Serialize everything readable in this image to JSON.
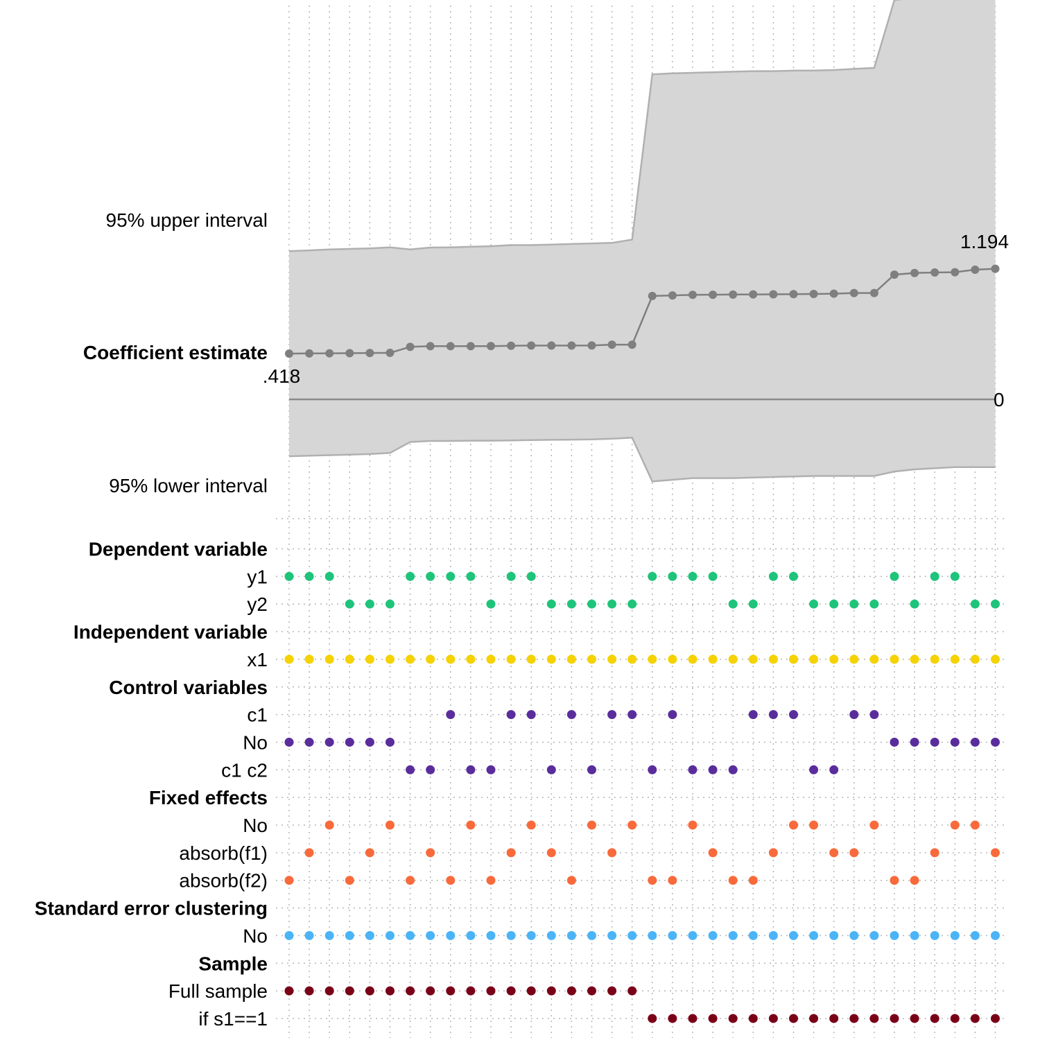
{
  "chart_data": {
    "type": "line",
    "n_specs": 36,
    "panel_labels": {
      "upper": "95% upper interval",
      "estimate": "Coefficient estimate",
      "lower": "95% lower interval"
    },
    "value_labels": {
      "first": ".418",
      "last": "1.194",
      "zero": "0"
    },
    "coefficient_estimate": [
      0.418,
      0.42,
      0.421,
      0.422,
      0.424,
      0.425,
      0.48,
      0.486,
      0.486,
      0.486,
      0.487,
      0.49,
      0.492,
      0.492,
      0.492,
      0.493,
      0.5,
      0.5,
      0.945,
      0.95,
      0.955,
      0.956,
      0.958,
      0.959,
      0.96,
      0.962,
      0.963,
      0.966,
      0.972,
      0.972,
      1.14,
      1.155,
      1.16,
      1.162,
      1.185,
      1.194
    ],
    "ci_upper": [
      1.355,
      1.362,
      1.37,
      1.375,
      1.38,
      1.39,
      1.37,
      1.388,
      1.39,
      1.395,
      1.4,
      1.41,
      1.41,
      1.415,
      1.42,
      1.425,
      1.43,
      1.46,
      2.97,
      2.98,
      2.985,
      2.99,
      2.995,
      3.0,
      3.0,
      3.005,
      3.005,
      3.01,
      3.02,
      3.03,
      3.65,
      3.67,
      3.675,
      3.69,
      3.71,
      3.71
    ],
    "ci_lower": [
      -0.52,
      -0.515,
      -0.51,
      -0.505,
      -0.5,
      -0.49,
      -0.39,
      -0.38,
      -0.38,
      -0.378,
      -0.378,
      -0.375,
      -0.372,
      -0.37,
      -0.368,
      -0.366,
      -0.36,
      -0.35,
      -0.75,
      -0.735,
      -0.72,
      -0.72,
      -0.72,
      -0.715,
      -0.71,
      -0.705,
      -0.7,
      -0.7,
      -0.7,
      -0.7,
      -0.66,
      -0.64,
      -0.63,
      -0.62,
      -0.62,
      -0.62
    ],
    "estimate_line_color": "#7f7f7f",
    "band_color": "#d6d6d6",
    "band_edge_color": "#b0b0b0",
    "indicator_groups": [
      {
        "title": "Dependent variable",
        "color": "#1ec47a",
        "rows": [
          {
            "label": "y1",
            "specs": [
              1,
              2,
              3,
              7,
              8,
              9,
              10,
              12,
              13,
              19,
              20,
              21,
              22,
              25,
              26,
              31,
              33,
              34
            ]
          },
          {
            "label": "y2",
            "specs": [
              4,
              5,
              6,
              11,
              14,
              15,
              16,
              17,
              18,
              23,
              24,
              27,
              28,
              29,
              30,
              32,
              35,
              36
            ]
          }
        ]
      },
      {
        "title": "Independent variable",
        "color": "#f5d200",
        "rows": [
          {
            "label": "x1",
            "specs": [
              1,
              2,
              3,
              4,
              5,
              6,
              7,
              8,
              9,
              10,
              11,
              12,
              13,
              14,
              15,
              16,
              17,
              18,
              19,
              20,
              21,
              22,
              23,
              24,
              25,
              26,
              27,
              28,
              29,
              30,
              31,
              32,
              33,
              34,
              35,
              36
            ]
          }
        ]
      },
      {
        "title": "Control variables",
        "color": "#5a2d9c",
        "rows": [
          {
            "label": "c1",
            "specs": [
              9,
              12,
              13,
              15,
              17,
              18,
              20,
              24,
              25,
              26,
              29,
              30
            ]
          },
          {
            "label": "No",
            "specs": [
              1,
              2,
              3,
              4,
              5,
              6,
              31,
              32,
              33,
              34,
              35,
              36
            ]
          },
          {
            "label": "c1 c2",
            "specs": [
              7,
              8,
              10,
              11,
              14,
              16,
              19,
              21,
              22,
              23,
              27,
              28
            ]
          }
        ]
      },
      {
        "title": "Fixed effects",
        "color": "#f86a3b",
        "rows": [
          {
            "label": "No",
            "specs": [
              3,
              6,
              10,
              13,
              16,
              18,
              21,
              26,
              27,
              30,
              34,
              35
            ]
          },
          {
            "label": "absorb(f1)",
            "specs": [
              2,
              5,
              8,
              12,
              14,
              17,
              22,
              25,
              28,
              29,
              33,
              36
            ]
          },
          {
            "label": "absorb(f2)",
            "specs": [
              1,
              4,
              7,
              9,
              11,
              15,
              19,
              20,
              23,
              24,
              31,
              32
            ]
          }
        ]
      },
      {
        "title": "Standard error clustering",
        "color": "#4bb4f7",
        "rows": [
          {
            "label": "No",
            "specs": [
              1,
              2,
              3,
              4,
              5,
              6,
              7,
              8,
              9,
              10,
              11,
              12,
              13,
              14,
              15,
              16,
              17,
              18,
              19,
              20,
              21,
              22,
              23,
              24,
              25,
              26,
              27,
              28,
              29,
              30,
              31,
              32,
              33,
              34,
              35,
              36
            ]
          }
        ]
      },
      {
        "title": "Sample",
        "color": "#7a0018",
        "rows": [
          {
            "label": "Full sample",
            "specs": [
              1,
              2,
              3,
              4,
              5,
              6,
              7,
              8,
              9,
              10,
              11,
              12,
              13,
              14,
              15,
              16,
              17,
              18
            ]
          },
          {
            "label": "if s1==1",
            "specs": [
              19,
              20,
              21,
              22,
              23,
              24,
              25,
              26,
              27,
              28,
              29,
              30,
              31,
              32,
              33,
              34,
              35,
              36
            ]
          }
        ]
      }
    ]
  }
}
